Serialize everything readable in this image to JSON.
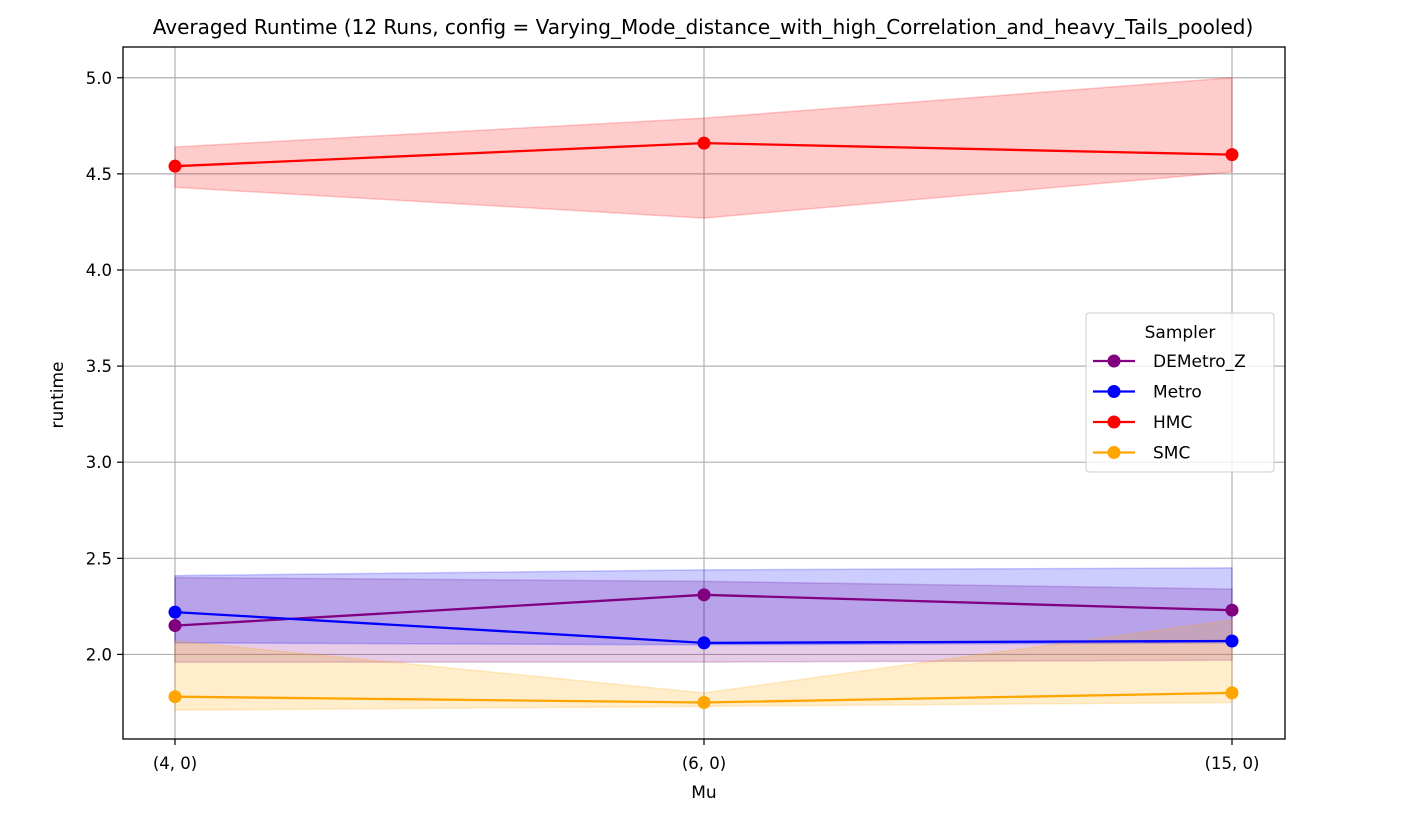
{
  "chart_data": {
    "type": "line",
    "title": "Averaged Runtime (12 Runs, config = Varying_Mode_distance_with_high_Correlation_and_heavy_Tails_pooled)",
    "xlabel": "Mu",
    "ylabel": "runtime",
    "categories": [
      "(4, 0)",
      "(6, 0)",
      "(15, 0)"
    ],
    "ylim": [
      1.56,
      5.16
    ],
    "yticks": [
      2.0,
      2.5,
      3.0,
      3.5,
      4.0,
      4.5,
      5.0
    ],
    "ytick_labels": [
      "2.0",
      "2.5",
      "3.0",
      "3.5",
      "4.0",
      "4.5",
      "5.0"
    ],
    "grid": true,
    "legend": {
      "title": "Sampler",
      "position": "center-right"
    },
    "series": [
      {
        "name": "DEMetro_Z",
        "color": "#800080",
        "values": [
          2.15,
          2.31,
          2.23
        ],
        "band_lower": [
          1.96,
          1.96,
          1.97
        ],
        "band_upper": [
          2.4,
          2.38,
          2.34
        ]
      },
      {
        "name": "Metro",
        "color": "#0000ff",
        "values": [
          2.22,
          2.06,
          2.07
        ],
        "band_lower": [
          2.06,
          2.05,
          2.06
        ],
        "band_upper": [
          2.41,
          2.44,
          2.45
        ]
      },
      {
        "name": "HMC",
        "color": "#ff0000",
        "values": [
          4.54,
          4.66,
          4.6
        ],
        "band_lower": [
          4.43,
          4.27,
          4.51
        ],
        "band_upper": [
          4.64,
          4.79,
          5.0
        ]
      },
      {
        "name": "SMC",
        "color": "#ffa500",
        "values": [
          1.78,
          1.75,
          1.8
        ],
        "band_lower": [
          1.71,
          1.73,
          1.75
        ],
        "band_upper": [
          2.07,
          1.8,
          2.18
        ]
      }
    ]
  }
}
